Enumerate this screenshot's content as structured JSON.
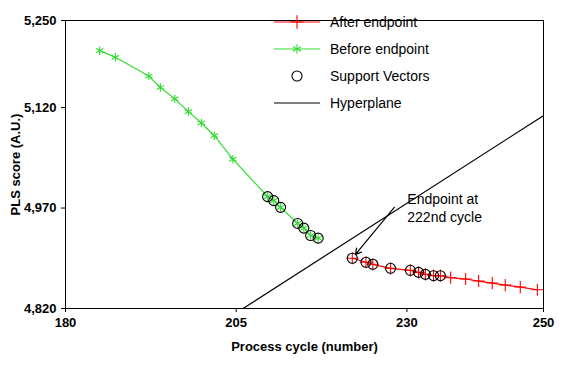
{
  "chart_data": {
    "type": "line",
    "x_label": "Process cycle (number)",
    "y_label": "PLS score (A.U.)",
    "xlim": [
      180,
      250
    ],
    "xticks": [
      180,
      205,
      230,
      250
    ],
    "ylim": [
      4820,
      5250
    ],
    "yticks": [
      {
        "value": 4820,
        "label": "4,820"
      },
      {
        "value": 4970,
        "label": "4,970"
      },
      {
        "value": 5120,
        "label": "5,120"
      },
      {
        "value": 5250,
        "label": "5,250"
      }
    ],
    "grid": false,
    "legend": "top-right",
    "series": [
      {
        "name": "After endpoint",
        "color": "#ff0000",
        "marker": "plus",
        "line_style": "solid",
        "x": [
          222,
          224,
          225,
          227.6,
          230.5,
          231.7,
          232.7,
          233.9,
          234.9,
          236.4,
          238.6,
          240.5,
          242.5,
          244.4,
          246.6,
          249.1
        ],
        "values": [
          4895,
          4889,
          4886,
          4880,
          4877,
          4874,
          4871,
          4869,
          4869,
          4866,
          4864,
          4861,
          4858,
          4855,
          4852,
          4848
        ]
      },
      {
        "name": "Before endpoint",
        "color": "#33dd33",
        "marker": "asterisk",
        "line_style": "solid",
        "x": [
          185,
          187.3,
          192.2,
          193.9,
          196,
          198,
          199.9,
          201.8,
          204.5,
          209.6,
          210.5,
          211.5,
          214,
          214.9,
          215.9,
          217
        ],
        "values": [
          5205,
          5195,
          5167,
          5150,
          5133,
          5114,
          5097,
          5078,
          5043,
          4987,
          4981,
          4971,
          4947,
          4940,
          4929,
          4925
        ]
      },
      {
        "name": "Support Vectors",
        "type": "scatter",
        "color": "#000000",
        "marker": "circle",
        "x": [
          209.6,
          210.5,
          211.5,
          214,
          214.9,
          215.9,
          217,
          222,
          224,
          225,
          227.6,
          230.5,
          231.7,
          232.7,
          233.9,
          234.9
        ],
        "values": [
          4987,
          4981,
          4971,
          4947,
          4940,
          4929,
          4925,
          4895,
          4889,
          4886,
          4880,
          4877,
          4874,
          4871,
          4869,
          4869
        ]
      },
      {
        "name": "Hyperplane",
        "type": "line",
        "color": "#000000",
        "marker": "none",
        "line_style": "solid",
        "x": [
          206,
          250
        ],
        "values": [
          4820,
          5108
        ]
      }
    ],
    "annotations": [
      {
        "text": "Endpoint at\n222nd cycle",
        "x": 222,
        "y": 4895
      }
    ]
  }
}
